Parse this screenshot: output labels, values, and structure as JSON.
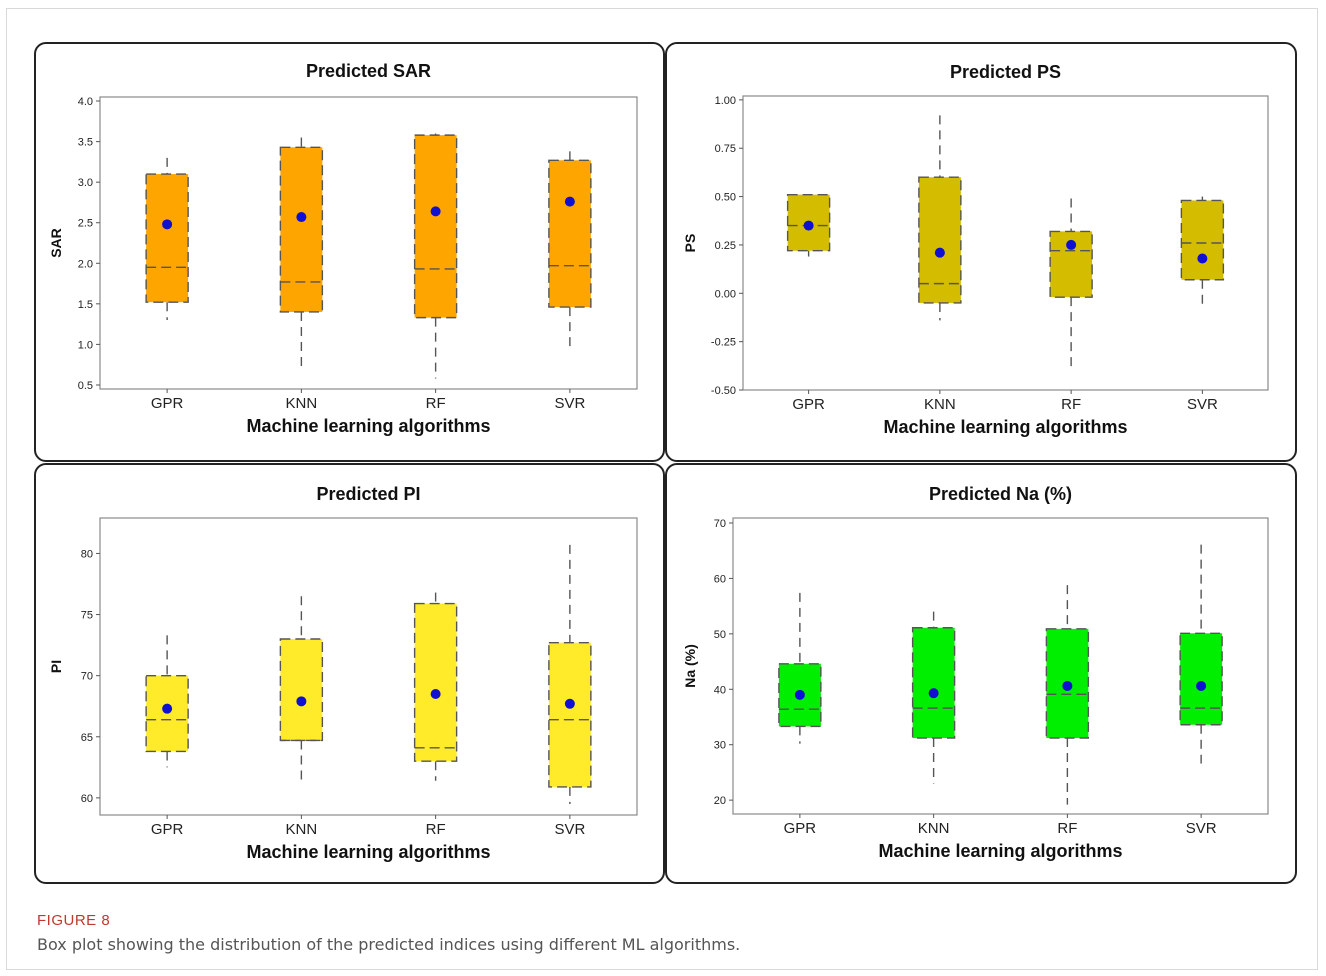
{
  "figure": {
    "label": "FIGURE 8",
    "caption": "Box plot showing the distribution of the predicted indices using different ML algorithms."
  },
  "colors": {
    "sar_fill": "#FFA500",
    "ps_fill": "#D4BC00",
    "pi_fill": "#FFEB2A",
    "na_fill": "#00EE00",
    "mean_dot": "#1010D0",
    "box_line": "#555555"
  },
  "chart_data": [
    {
      "type": "boxplot",
      "title": "Predicted SAR",
      "xlabel": "Machine learning algorithms",
      "ylabel": "SAR",
      "categories": [
        "GPR",
        "KNN",
        "RF",
        "SVR"
      ],
      "ylim": [
        0.45,
        4.05
      ],
      "yticks": [
        0.5,
        1.0,
        1.5,
        2.0,
        2.5,
        3.0,
        3.5,
        4.0
      ],
      "ytick_labels": [
        "0.5",
        "1.0",
        "1.5",
        "2.0",
        "2.5",
        "3.0",
        "3.5",
        "4.0"
      ],
      "boxes": [
        {
          "whisker_low": 1.3,
          "q1": 1.52,
          "median": 1.95,
          "q3": 3.1,
          "whisker_high": 3.3,
          "mean": 2.48
        },
        {
          "whisker_low": 0.7,
          "q1": 1.4,
          "median": 1.77,
          "q3": 3.43,
          "whisker_high": 3.55,
          "mean": 2.57
        },
        {
          "whisker_low": 0.58,
          "q1": 1.33,
          "median": 1.93,
          "q3": 3.58,
          "whisker_high": 3.6,
          "mean": 2.64
        },
        {
          "whisker_low": 0.95,
          "q1": 1.46,
          "median": 1.97,
          "q3": 3.27,
          "whisker_high": 3.38,
          "mean": 2.76
        }
      ],
      "fill": "#FFA500"
    },
    {
      "type": "boxplot",
      "title": "Predicted PS",
      "xlabel": "Machine learning algorithms",
      "ylabel": "PS",
      "categories": [
        "GPR",
        "KNN",
        "RF",
        "SVR"
      ],
      "ylim": [
        -0.5,
        1.02
      ],
      "yticks": [
        -0.5,
        -0.25,
        0.0,
        0.25,
        0.5,
        0.75,
        1.0
      ],
      "ytick_labels": [
        "-0.50",
        "-0.25",
        "0.00",
        "0.25",
        "0.50",
        "0.75",
        "1.00"
      ],
      "boxes": [
        {
          "whisker_low": 0.19,
          "q1": 0.22,
          "median": 0.35,
          "q3": 0.51,
          "whisker_high": 0.51,
          "mean": 0.35
        },
        {
          "whisker_low": -0.14,
          "q1": -0.05,
          "median": 0.05,
          "q3": 0.6,
          "whisker_high": 0.92,
          "mean": 0.21
        },
        {
          "whisker_low": -0.38,
          "q1": -0.02,
          "median": 0.22,
          "q3": 0.32,
          "whisker_high": 0.49,
          "mean": 0.25
        },
        {
          "whisker_low": -0.08,
          "q1": 0.07,
          "median": 0.26,
          "q3": 0.48,
          "whisker_high": 0.5,
          "mean": 0.18
        }
      ],
      "fill": "#D4BC00"
    },
    {
      "type": "boxplot",
      "title": "Predicted PI",
      "xlabel": "Machine learning algorithms",
      "ylabel": "PI",
      "categories": [
        "GPR",
        "KNN",
        "RF",
        "SVR"
      ],
      "ylim": [
        58.6,
        82.9
      ],
      "yticks": [
        60,
        65,
        70,
        75,
        80
      ],
      "ytick_labels": [
        "60",
        "65",
        "70",
        "75",
        "80"
      ],
      "boxes": [
        {
          "whisker_low": 62.5,
          "q1": 63.8,
          "median": 66.4,
          "q3": 70.0,
          "whisker_high": 73.3,
          "mean": 67.3
        },
        {
          "whisker_low": 61.4,
          "q1": 64.7,
          "median": 64.7,
          "q3": 73.0,
          "whisker_high": 76.5,
          "mean": 67.9
        },
        {
          "whisker_low": 61.4,
          "q1": 63.0,
          "median": 64.1,
          "q3": 75.9,
          "whisker_high": 76.8,
          "mean": 68.5
        },
        {
          "whisker_low": 59.5,
          "q1": 60.9,
          "median": 66.4,
          "q3": 72.7,
          "whisker_high": 80.7,
          "mean": 67.7
        }
      ],
      "fill": "#FFEB2A"
    },
    {
      "type": "boxplot",
      "title": "Predicted Na (%)",
      "xlabel": "Machine learning algorithms",
      "ylabel": "Na (%)",
      "categories": [
        "GPR",
        "KNN",
        "RF",
        "SVR"
      ],
      "ylim": [
        17.5,
        70.9
      ],
      "yticks": [
        20,
        30,
        40,
        50,
        60,
        70
      ],
      "ytick_labels": [
        "20",
        "30",
        "40",
        "50",
        "60",
        "70"
      ],
      "boxes": [
        {
          "whisker_low": 30.2,
          "q1": 33.3,
          "median": 36.4,
          "q3": 44.6,
          "whisker_high": 57.4,
          "mean": 39.0
        },
        {
          "whisker_low": 23.0,
          "q1": 31.2,
          "median": 36.6,
          "q3": 51.1,
          "whisker_high": 54.0,
          "mean": 39.3
        },
        {
          "whisker_low": 19.2,
          "q1": 31.2,
          "median": 39.1,
          "q3": 50.9,
          "whisker_high": 58.8,
          "mean": 40.6
        },
        {
          "whisker_low": 26.6,
          "q1": 33.6,
          "median": 36.6,
          "q3": 50.1,
          "whisker_high": 66.1,
          "mean": 40.6
        }
      ],
      "fill": "#00EE00"
    }
  ]
}
